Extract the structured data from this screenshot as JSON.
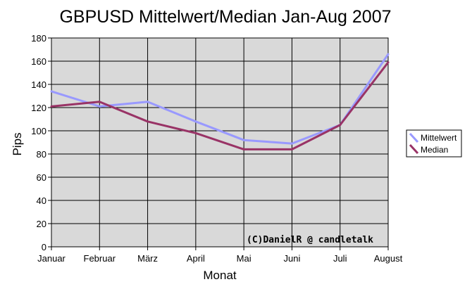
{
  "chart_data": {
    "type": "line",
    "title": "GBPUSD Mittelwert/Median Jan-Aug 2007",
    "xlabel": "Monat",
    "ylabel": "Pips",
    "categories": [
      "Januar",
      "Februar",
      "März",
      "April",
      "Mai",
      "Juni",
      "Juli",
      "August"
    ],
    "ylim": [
      0,
      180
    ],
    "yticks": [
      0,
      20,
      40,
      60,
      80,
      100,
      120,
      140,
      160,
      180
    ],
    "grid": true,
    "legend_position": "right",
    "annotation": "(C)DanielR @ candletalk",
    "series": [
      {
        "name": "Mittelwert",
        "color": "#9999ff",
        "values": [
          134,
          121,
          125,
          108,
          92,
          89,
          105,
          166
        ]
      },
      {
        "name": "Median",
        "color": "#993366",
        "values": [
          121,
          125,
          108,
          98,
          84,
          84,
          105,
          159
        ]
      }
    ],
    "plot_background": "#d9d9d9"
  }
}
